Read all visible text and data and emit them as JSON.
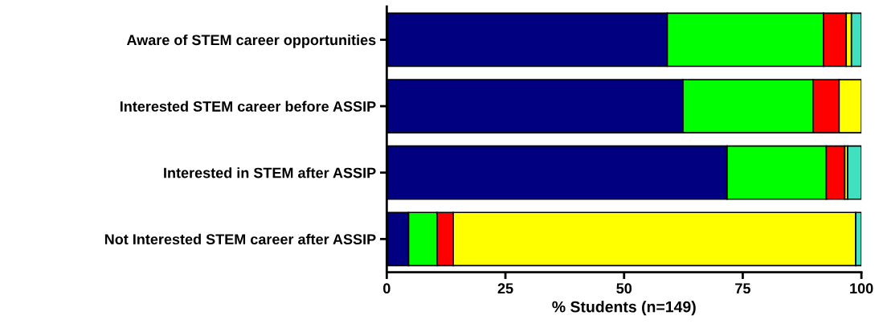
{
  "chart_data": {
    "type": "bar",
    "orientation": "horizontal",
    "stacked": true,
    "categories": [
      "Aware of STEM career opportunities",
      "Interested STEM career before ASSIP",
      "Interested in STEM after ASSIP",
      "Not Interested STEM career after ASSIP"
    ],
    "series": [
      {
        "color": "#000080",
        "values": [
          59.1,
          62.4,
          71.7,
          4.6
        ]
      },
      {
        "color": "#00ff00",
        "values": [
          32.9,
          27.4,
          20.9,
          6.0
        ]
      },
      {
        "color": "#ff0000",
        "values": [
          4.8,
          5.5,
          3.9,
          3.4
        ]
      },
      {
        "color": "#ffff00",
        "values": [
          1.1,
          4.7,
          0.6,
          84.8
        ]
      },
      {
        "color": "#40e0c0",
        "values": [
          2.1,
          null,
          2.9,
          1.2
        ]
      }
    ],
    "xlabel": "% Students (n=149)",
    "xlim": [
      0,
      100
    ],
    "xticks": [
      0,
      25,
      50,
      75,
      100
    ],
    "grid": false,
    "legend": false
  }
}
